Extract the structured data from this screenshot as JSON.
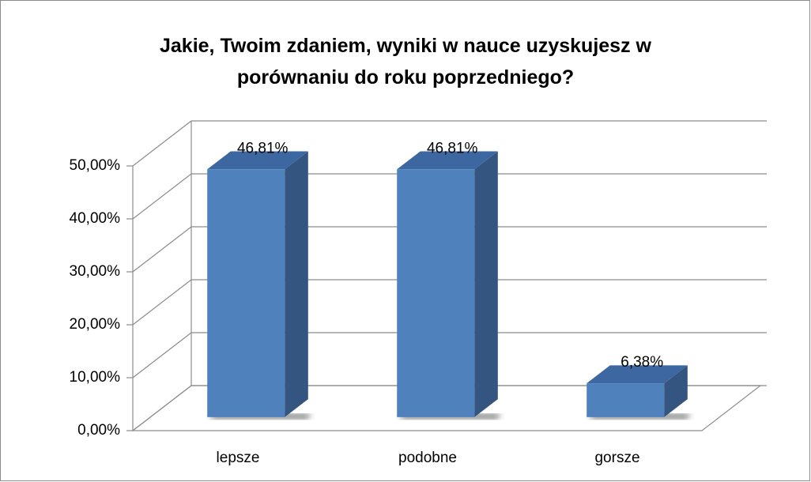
{
  "chart_data": {
    "type": "bar3d",
    "title": "Jakie, Twoim zdaniem, wyniki w nauce uzyskujesz w porównaniu do roku poprzedniego?",
    "categories": [
      "lepsze",
      "podobne",
      "gorsze"
    ],
    "values": [
      46.81,
      46.81,
      6.38
    ],
    "value_labels": [
      "46,81%",
      "46,81%",
      "6,38%"
    ],
    "color": "#4f81bd",
    "ylim": [
      0,
      50
    ],
    "yticks": [
      {
        "value": 0,
        "label": "0,00%"
      },
      {
        "value": 10,
        "label": "10,00%"
      },
      {
        "value": 20,
        "label": "20,00%"
      },
      {
        "value": 30,
        "label": "30,00%"
      },
      {
        "value": 40,
        "label": "40,00%"
      },
      {
        "value": 50,
        "label": "50,00%"
      }
    ],
    "grid": true
  }
}
